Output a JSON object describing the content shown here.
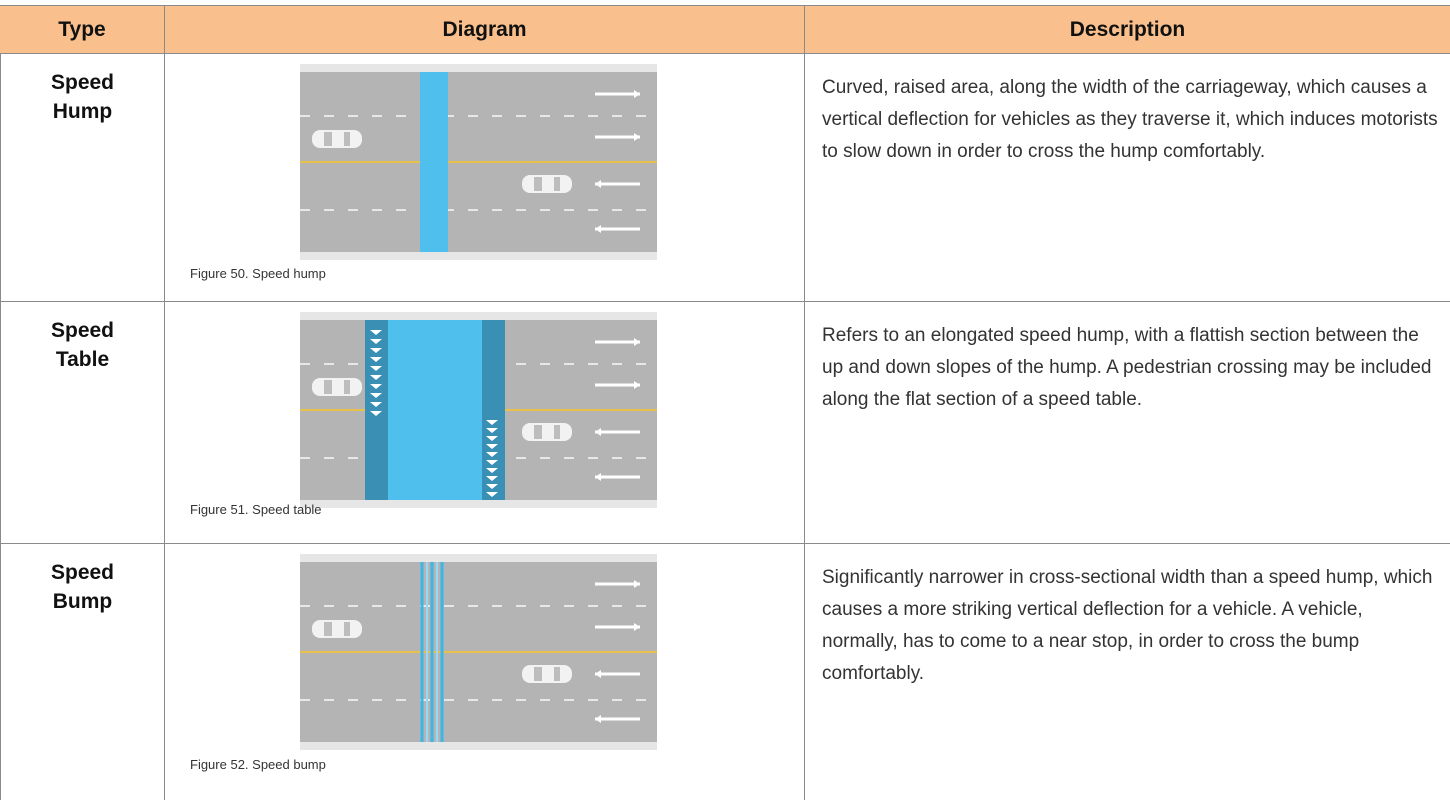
{
  "table": {
    "header": [
      "Type",
      "Diagram",
      "Description"
    ],
    "rows": [
      {
        "type": "Speed Hump",
        "caption": "Figure 50.  Speed hump",
        "description": "Curved, raised area, along the width of the carriageway, which causes a vertical deflection for vehicles as they traverse it, which induces motorists to slow down in order to cross the hump comfortably."
      },
      {
        "type": "Speed Table",
        "caption": "Figure 51.  Speed table",
        "description": "Refers to an elongated speed hump, with a flattish section between the up and down slopes of the hump. A pedestrian crossing may be included along the flat section of a speed table."
      },
      {
        "type": "Speed Bump",
        "caption": "Figure 52.  Speed bump",
        "description": "Significantly narrower in cross-sectional width than a speed hump, which causes a more striking vertical deflection for a vehicle. A vehicle, normally, has to come to a near stop, in order to cross the bump comfortably."
      }
    ]
  }
}
